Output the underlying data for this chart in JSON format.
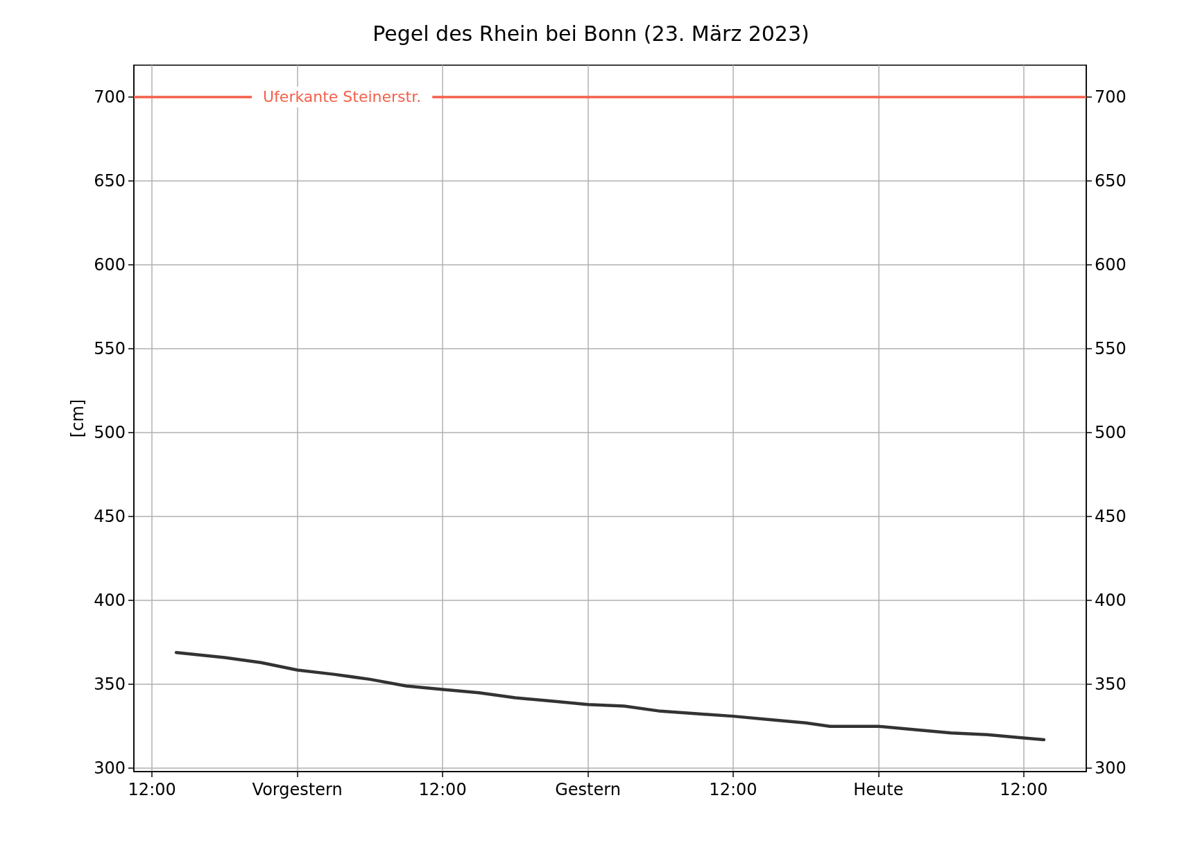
{
  "chart_data": {
    "type": "line",
    "title": "Pegel des Rhein bei Bonn (23. März 2023)",
    "ylabel": "[cm]",
    "x": [
      "2023-03-20T14:00",
      "2023-03-20T18:00",
      "2023-03-20T21:00",
      "2023-03-21T00:00",
      "2023-03-21T03:00",
      "2023-03-21T06:00",
      "2023-03-21T09:00",
      "2023-03-21T12:00",
      "2023-03-21T15:00",
      "2023-03-21T18:00",
      "2023-03-21T21:00",
      "2023-03-22T00:00",
      "2023-03-22T03:00",
      "2023-03-22T06:00",
      "2023-03-22T09:00",
      "2023-03-22T12:00",
      "2023-03-22T15:00",
      "2023-03-22T18:00",
      "2023-03-22T20:00",
      "2023-03-23T00:00",
      "2023-03-23T03:00",
      "2023-03-23T06:00",
      "2023-03-23T09:00",
      "2023-03-23T12:00",
      "2023-03-23T13:40"
    ],
    "series": [
      {
        "color": "#333333",
        "values": [
          369,
          366,
          363,
          358.5,
          356,
          353,
          349,
          347,
          345,
          342,
          340,
          338,
          337,
          334,
          332.5,
          331,
          329,
          327,
          325,
          325,
          323,
          321,
          320,
          318,
          317
        ]
      }
    ],
    "xlim": [
      "2023-03-20T10:30",
      "2023-03-23T17:10"
    ],
    "xticks": [
      {
        "value": "2023-03-20T12:00",
        "label": "12:00"
      },
      {
        "value": "2023-03-21T00:00",
        "label": "Vorgestern"
      },
      {
        "value": "2023-03-21T12:00",
        "label": "12:00"
      },
      {
        "value": "2023-03-22T00:00",
        "label": "Gestern"
      },
      {
        "value": "2023-03-22T12:00",
        "label": "12:00"
      },
      {
        "value": "2023-03-23T00:00",
        "label": "Heute"
      },
      {
        "value": "2023-03-23T12:00",
        "label": "12:00"
      }
    ],
    "ylim": [
      298,
      719
    ],
    "yticks": [
      300,
      350,
      400,
      450,
      500,
      550,
      600,
      650,
      700
    ],
    "y2lim": [
      298,
      719
    ],
    "y2ticks": [
      300,
      350,
      400,
      450,
      500,
      550,
      600,
      650,
      700
    ],
    "ref_lines": [
      {
        "axis": "y",
        "value": 700,
        "label": "Uferkante Steinerstr.",
        "color": "#f4604a"
      }
    ],
    "grid": true,
    "marker": "none",
    "line_style": "solid"
  }
}
